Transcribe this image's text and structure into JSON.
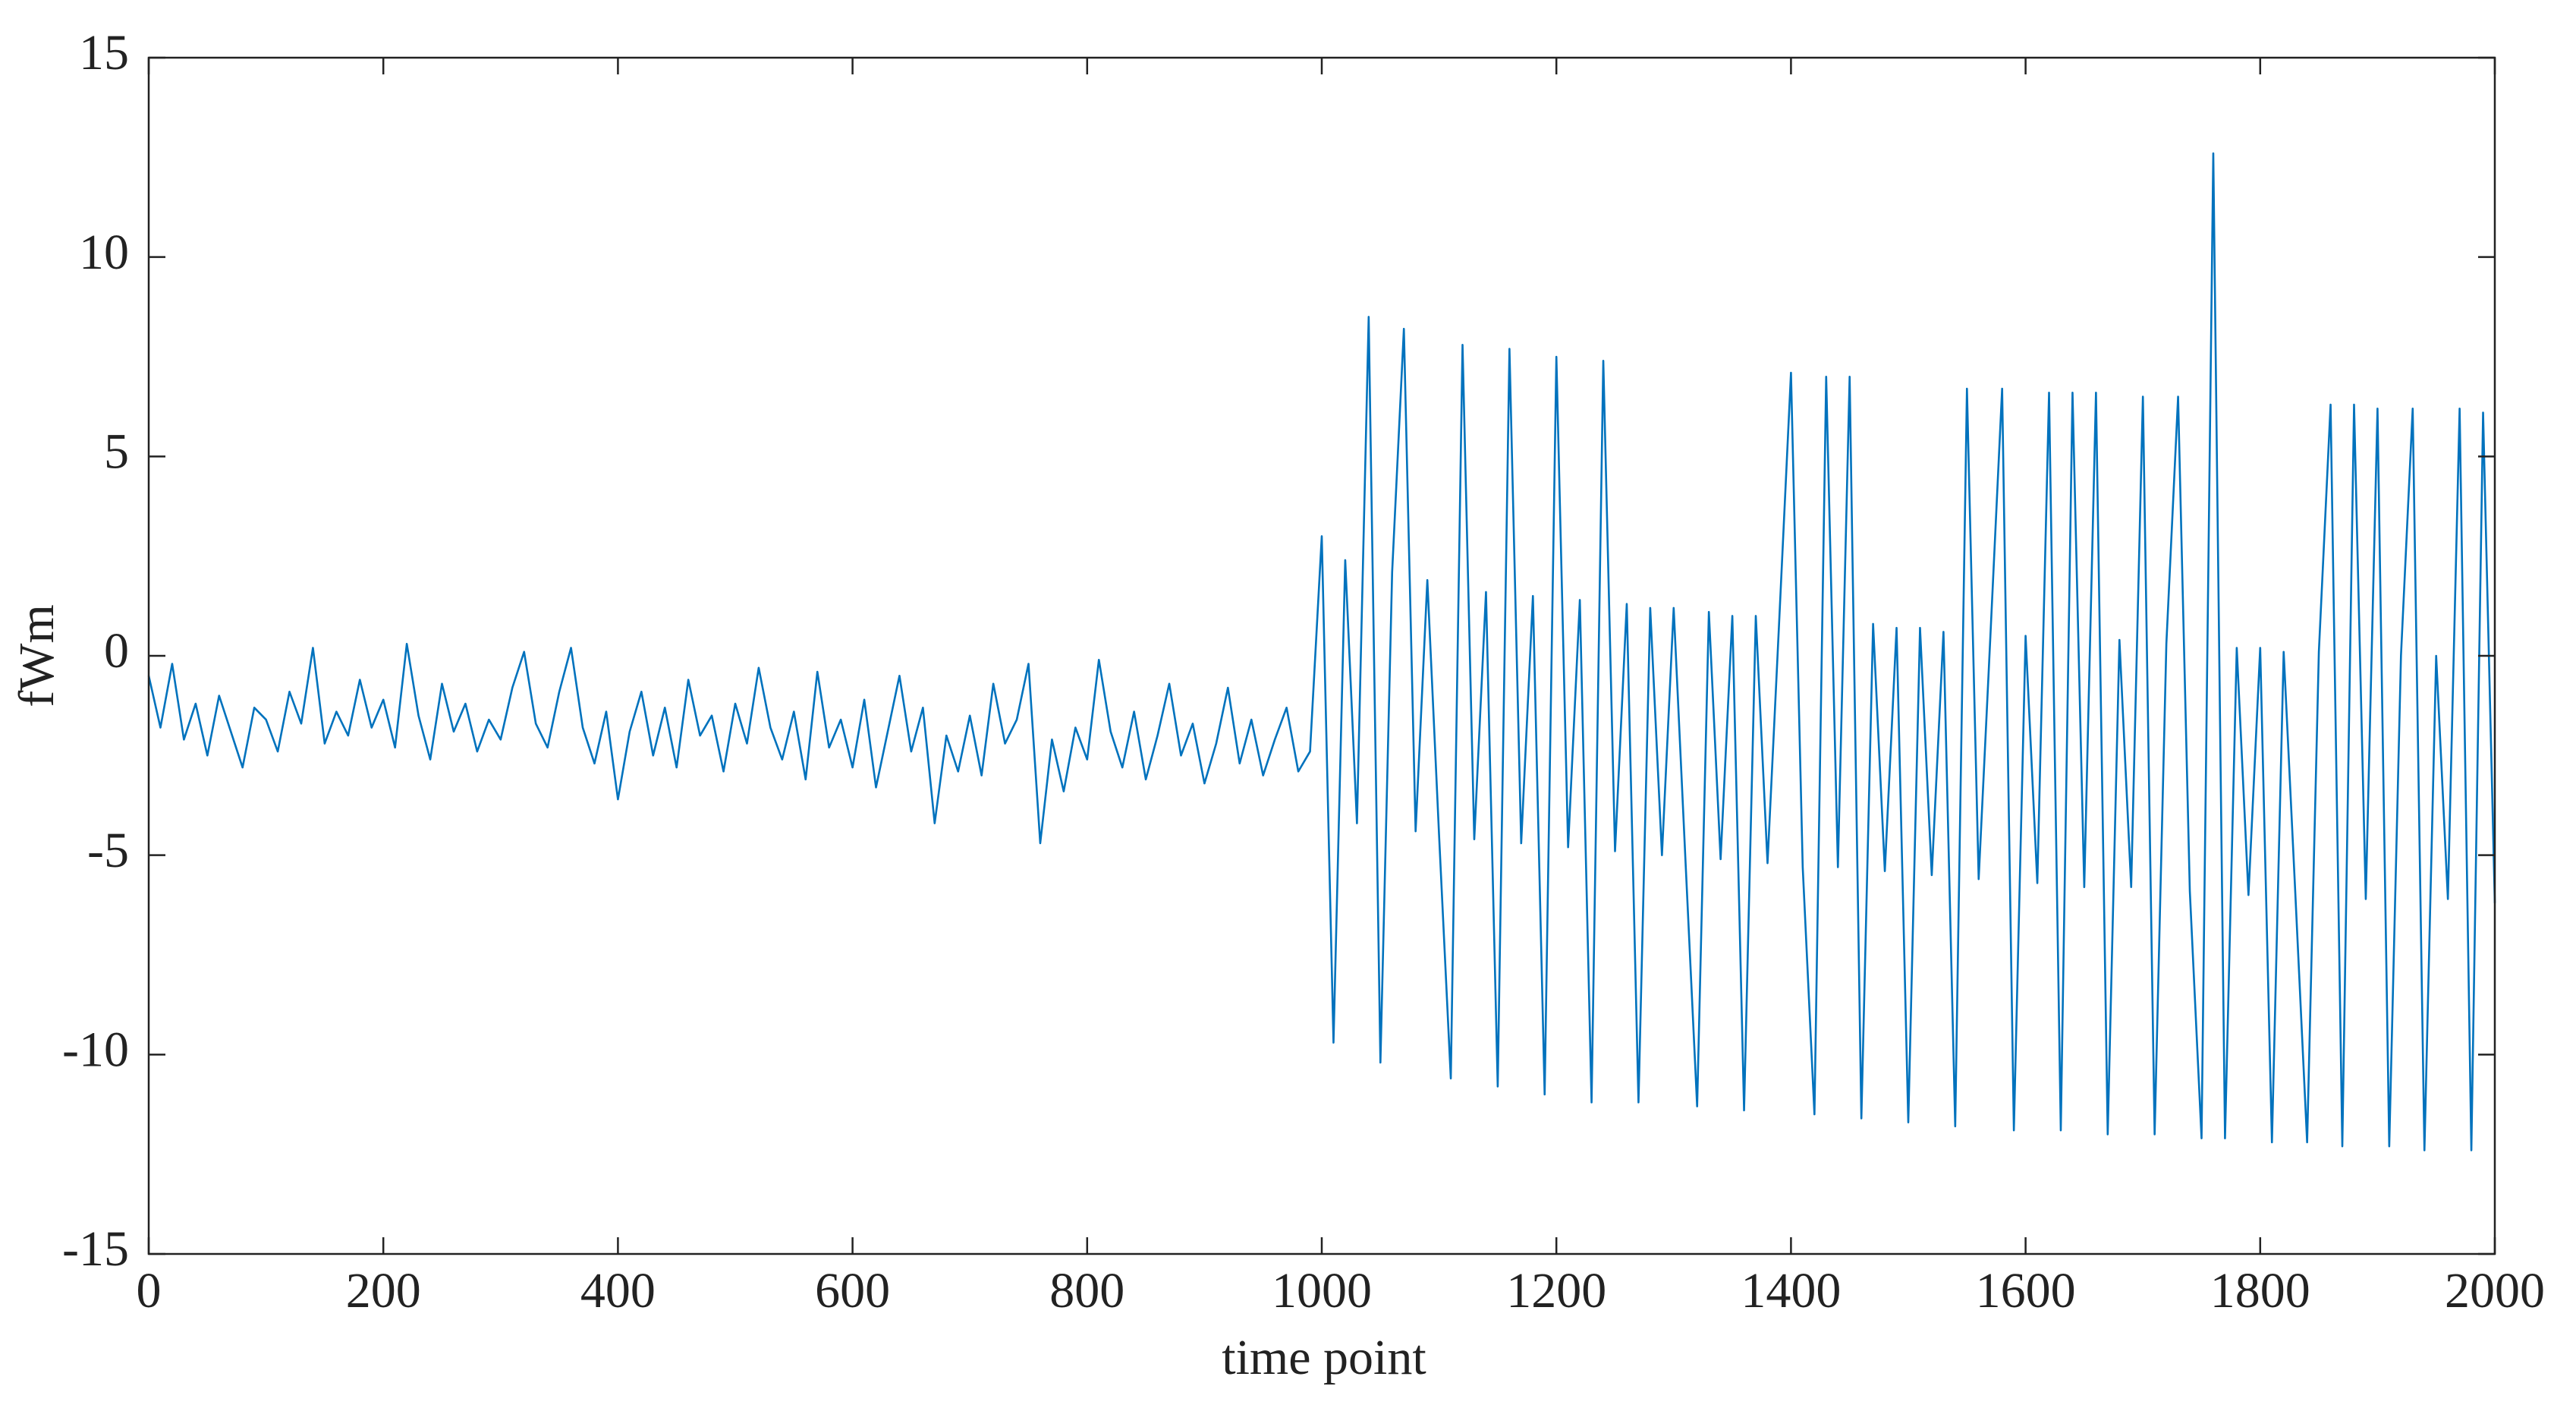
{
  "chart_data": {
    "type": "line",
    "xlabel": "time point",
    "ylabel": "fWm",
    "x": [
      0,
      10,
      20,
      30,
      40,
      50,
      60,
      70,
      80,
      90,
      100,
      110,
      120,
      130,
      140,
      150,
      160,
      170,
      180,
      190,
      200,
      210,
      220,
      230,
      240,
      250,
      260,
      270,
      280,
      290,
      300,
      310,
      320,
      330,
      340,
      350,
      360,
      370,
      380,
      390,
      400,
      410,
      420,
      430,
      440,
      450,
      460,
      470,
      480,
      490,
      500,
      510,
      520,
      530,
      540,
      550,
      560,
      570,
      580,
      590,
      600,
      610,
      620,
      630,
      640,
      650,
      660,
      670,
      680,
      690,
      700,
      710,
      720,
      730,
      740,
      750,
      760,
      770,
      780,
      790,
      800,
      810,
      820,
      830,
      840,
      850,
      860,
      870,
      880,
      890,
      900,
      910,
      920,
      930,
      940,
      950,
      960,
      970,
      980,
      990,
      1000,
      1010,
      1020,
      1030,
      1040,
      1050,
      1060,
      1070,
      1080,
      1090,
      1100,
      1110,
      1120,
      1130,
      1140,
      1150,
      1160,
      1170,
      1180,
      1190,
      1200,
      1210,
      1220,
      1230,
      1240,
      1250,
      1260,
      1270,
      1280,
      1290,
      1300,
      1310,
      1320,
      1330,
      1340,
      1350,
      1360,
      1370,
      1380,
      1390,
      1400,
      1410,
      1420,
      1430,
      1440,
      1450,
      1460,
      1470,
      1480,
      1490,
      1500,
      1510,
      1520,
      1530,
      1540,
      1550,
      1560,
      1570,
      1580,
      1590,
      1600,
      1610,
      1620,
      1630,
      1640,
      1650,
      1660,
      1670,
      1680,
      1690,
      1700,
      1710,
      1720,
      1730,
      1740,
      1750,
      1760,
      1770,
      1780,
      1790,
      1800,
      1810,
      1820,
      1830,
      1840,
      1850,
      1860,
      1870,
      1880,
      1890,
      1900,
      1910,
      1920,
      1930,
      1940,
      1950,
      1960,
      1970,
      1980,
      1990,
      2000
    ],
    "series": [
      {
        "color": "#0072bd",
        "values": [
          -0.5,
          -1.8,
          -0.2,
          -2.1,
          -1.2,
          -2.5,
          -1.0,
          -1.9,
          -2.8,
          -1.3,
          -1.6,
          -2.4,
          -0.9,
          -1.7,
          0.2,
          -2.2,
          -1.4,
          -2.0,
          -0.6,
          -1.8,
          -1.1,
          -2.3,
          0.3,
          -1.5,
          -2.6,
          -0.7,
          -1.9,
          -1.2,
          -2.4,
          -1.6,
          -2.1,
          -0.8,
          0.1,
          -1.7,
          -2.3,
          -0.9,
          0.2,
          -1.8,
          -2.7,
          -1.4,
          -3.6,
          -1.9,
          -0.9,
          -2.5,
          -1.3,
          -2.8,
          -0.6,
          -2.0,
          -1.5,
          -2.9,
          -1.2,
          -2.2,
          -0.3,
          -1.8,
          -2.6,
          -1.4,
          -3.1,
          -0.4,
          -2.3,
          -1.6,
          -2.8,
          -1.1,
          -3.3,
          -1.9,
          -0.5,
          -2.4,
          -1.3,
          -4.2,
          -2.0,
          -2.9,
          -1.5,
          -3.0,
          -0.7,
          -2.2,
          -1.6,
          -0.2,
          -4.7,
          -2.1,
          -3.4,
          -1.8,
          -2.6,
          -0.1,
          -1.9,
          -2.8,
          -1.4,
          -3.1,
          -2.0,
          -0.7,
          -2.5,
          -1.7,
          -3.2,
          -2.2,
          -0.8,
          -2.7,
          -1.6,
          -3.0,
          -2.1,
          -1.3,
          -2.9,
          -2.4,
          3.0,
          -9.7,
          2.4,
          -4.2,
          8.5,
          -10.2,
          2.1,
          8.2,
          -4.4,
          1.9,
          -4.5,
          -10.6,
          7.8,
          -4.6,
          1.6,
          -10.8,
          7.7,
          -4.7,
          1.5,
          -11.0,
          7.5,
          -4.8,
          1.4,
          -11.2,
          7.4,
          -4.9,
          1.3,
          -11.2,
          1.2,
          -5.0,
          1.2,
          -5.1,
          -11.3,
          1.1,
          -5.1,
          1.0,
          -11.4,
          1.0,
          -5.2,
          0.9,
          7.1,
          -5.3,
          -11.5,
          7.0,
          -5.3,
          7.0,
          -11.6,
          0.8,
          -5.4,
          0.7,
          -11.7,
          0.7,
          -5.5,
          0.6,
          -11.8,
          6.7,
          -5.6,
          0.5,
          6.7,
          -11.9,
          0.5,
          -5.7,
          6.6,
          -11.9,
          6.6,
          -5.8,
          6.6,
          -12.0,
          0.4,
          -5.8,
          6.5,
          -12.0,
          0.3,
          6.5,
          -5.9,
          -12.1,
          12.6,
          -12.1,
          0.2,
          -6.0,
          0.2,
          -12.2,
          0.1,
          -6.0,
          -12.2,
          0.1,
          6.3,
          -12.3,
          6.3,
          -6.1,
          6.2,
          -12.3,
          0.0,
          6.2,
          -12.4,
          0.0,
          -6.1,
          6.2,
          -12.4,
          6.1,
          -6.2
        ]
      }
    ],
    "xlim": [
      0,
      2000
    ],
    "xticks": [
      0,
      200,
      400,
      600,
      800,
      1000,
      1200,
      1400,
      1600,
      1800,
      2000
    ],
    "ylim": [
      -15,
      15
    ],
    "yticks": [
      -15,
      -10,
      -5,
      0,
      5,
      10,
      15
    ]
  }
}
